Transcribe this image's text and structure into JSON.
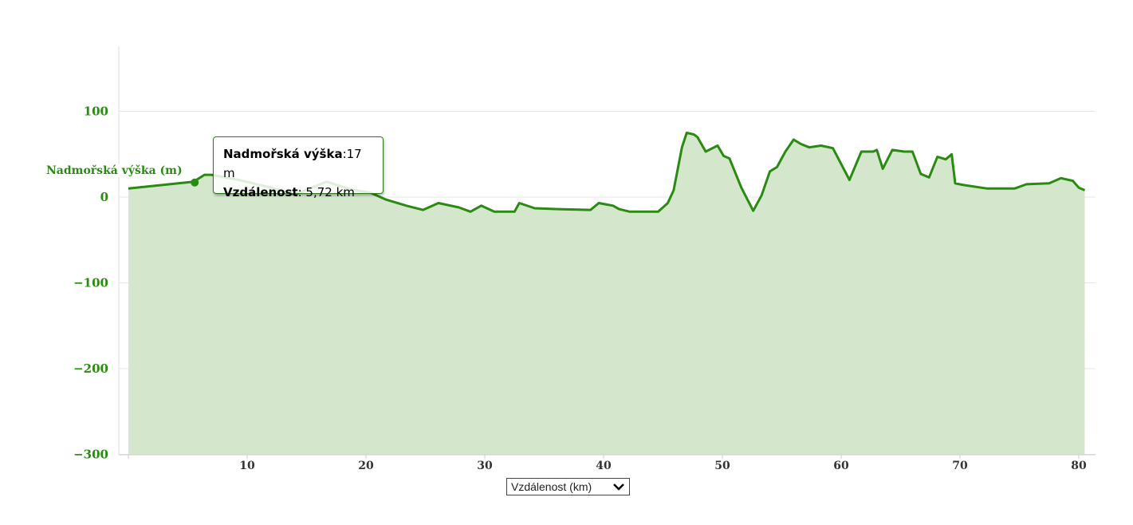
{
  "chart_data": {
    "type": "area",
    "title": "",
    "ylabel": "Nadmořská výška (m)",
    "xlabel": "Vzdálenost (km)",
    "xlim": [
      0,
      80.5
    ],
    "ylim": [
      -300,
      175
    ],
    "yticks": [
      100,
      0,
      -100,
      -200,
      -300
    ],
    "ytick_labels": [
      "100",
      "0",
      "−100",
      "−200",
      "−300"
    ],
    "xticks": [
      10,
      20,
      30,
      40,
      50,
      60,
      70,
      80
    ],
    "grid": true,
    "color": "#2a8a12",
    "fill": "#d4e6cc",
    "x": [
      0,
      5.5,
      6.4,
      7.0,
      9.3,
      12,
      14,
      16.7,
      18.7,
      20.4,
      21.7,
      23.4,
      24.8,
      26.1,
      27.8,
      28.8,
      29.7,
      30.8,
      32.5,
      32.9,
      34.2,
      36.2,
      38.9,
      39.6,
      40.8,
      41.3,
      42.2,
      44.6,
      45.4,
      45.9,
      46.6,
      47.0,
      47.6,
      47.9,
      48.6,
      49.6,
      50.1,
      50.6,
      51.6,
      52.6,
      53.3,
      54.0,
      54.6,
      55.3,
      56.0,
      56.6,
      57.3,
      58.3,
      59.3,
      60.7,
      61.7,
      62.7,
      63.0,
      63.5,
      64.3,
      65.3,
      66.0,
      66.7,
      67.4,
      68.1,
      68.8,
      69.3,
      69.6,
      70.3,
      72.3,
      74.6,
      75.6,
      77.5,
      78.5,
      79.5,
      80.0,
      80.5
    ],
    "values": [
      10,
      18,
      26,
      26,
      20,
      11,
      3,
      18,
      9,
      5,
      -3,
      -10,
      -15,
      -7,
      -12,
      -17,
      -10,
      -17,
      -17,
      -7,
      -13,
      -14,
      -15,
      -7,
      -10,
      -14,
      -17,
      -17,
      -7,
      8,
      58,
      75,
      73,
      70,
      53,
      60,
      48,
      45,
      11,
      -16,
      2,
      30,
      35,
      53,
      67,
      62,
      58,
      60,
      57,
      20,
      53,
      53,
      55,
      33,
      55,
      53,
      53,
      27,
      23,
      47,
      44,
      50,
      16,
      14,
      10,
      10,
      15,
      16,
      22,
      19,
      11,
      8
    ]
  },
  "tooltip": {
    "label1": "Nadmořská výška",
    "value1": ":17 m",
    "label2": "Vzdálenost",
    "value2": ": 5,72 km",
    "x": 5.72,
    "y": 17
  },
  "x_selector": {
    "value": "Vzdálenost (km)"
  }
}
